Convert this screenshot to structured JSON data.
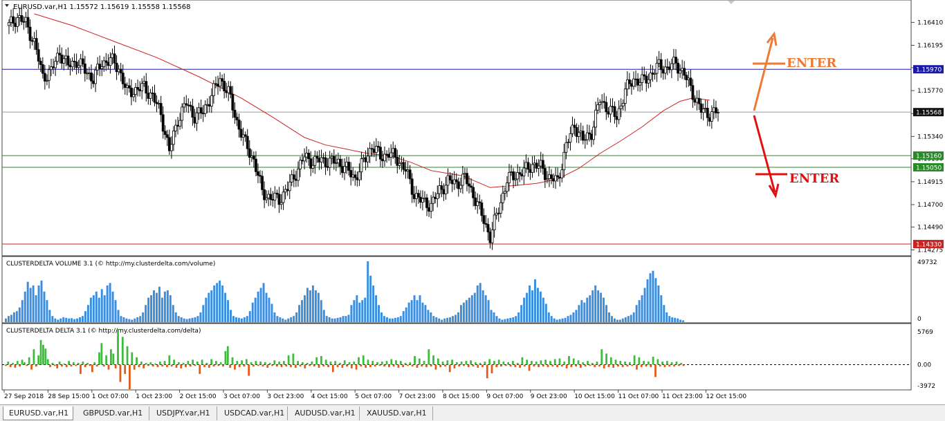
{
  "chart_data": [
    {
      "type": "candlestick",
      "title": "EURUSD.var,H1  1.15572 1.15619 1.15558 1.15568",
      "ohlc_last": {
        "open": 1.15572,
        "high": 1.15619,
        "low": 1.15558,
        "close": 1.15568
      },
      "ylim": [
        1.1422,
        1.1662
      ],
      "y_ticks": [
        1.1641,
        1.16195,
        1.15985,
        1.1577,
        1.15555,
        1.1534,
        1.1513,
        1.14915,
        1.147,
        1.1449,
        1.14275
      ],
      "y_tick_labels": [
        "1.16410",
        "1.16195",
        "1.15985",
        "1.15770",
        "1.15555",
        "1.15340",
        "1.15130",
        "1.14915",
        "1.14700",
        "1.14490",
        "1.14275"
      ],
      "close_path": [
        [
          0,
          1.1638
        ],
        [
          4,
          1.1646
        ],
        [
          8,
          1.164
        ],
        [
          12,
          1.1622
        ],
        [
          16,
          1.159
        ],
        [
          20,
          1.1595
        ],
        [
          24,
          1.1613
        ],
        [
          28,
          1.16
        ],
        [
          32,
          1.1605
        ],
        [
          36,
          1.1596
        ],
        [
          40,
          1.1588
        ],
        [
          44,
          1.1603
        ],
        [
          48,
          1.1606
        ],
        [
          52,
          1.1598
        ],
        [
          56,
          1.1575
        ],
        [
          60,
          1.1578
        ],
        [
          64,
          1.158
        ],
        [
          68,
          1.1572
        ],
        [
          72,
          1.1555
        ],
        [
          76,
          1.152
        ],
        [
          80,
          1.155
        ],
        [
          84,
          1.1565
        ],
        [
          88,
          1.1553
        ],
        [
          92,
          1.1557
        ],
        [
          96,
          1.1573
        ],
        [
          100,
          1.1588
        ],
        [
          104,
          1.1575
        ],
        [
          108,
          1.1548
        ],
        [
          112,
          1.1527
        ],
        [
          116,
          1.1512
        ],
        [
          120,
          1.1482
        ],
        [
          124,
          1.1476
        ],
        [
          128,
          1.1475
        ],
        [
          132,
          1.1485
        ],
        [
          136,
          1.15
        ],
        [
          140,
          1.1515
        ],
        [
          144,
          1.151
        ],
        [
          148,
          1.1512
        ],
        [
          152,
          1.151
        ],
        [
          156,
          1.151
        ],
        [
          160,
          1.1503
        ],
        [
          164,
          1.1495
        ],
        [
          168,
          1.151
        ],
        [
          172,
          1.1525
        ],
        [
          176,
          1.1515
        ],
        [
          180,
          1.1518
        ],
        [
          184,
          1.1513
        ],
        [
          188,
          1.1502
        ],
        [
          192,
          1.148
        ],
        [
          196,
          1.1472
        ],
        [
          200,
          1.147
        ],
        [
          204,
          1.1483
        ],
        [
          208,
          1.1492
        ],
        [
          212,
          1.149
        ],
        [
          216,
          1.1495
        ],
        [
          220,
          1.148
        ],
        [
          224,
          1.146
        ],
        [
          228,
          1.144
        ],
        [
          232,
          1.1466
        ],
        [
          236,
          1.1493
        ],
        [
          240,
          1.1498
        ],
        [
          244,
          1.1501
        ],
        [
          248,
          1.1508
        ],
        [
          252,
          1.1505
        ],
        [
          256,
          1.1495
        ],
        [
          260,
          1.1492
        ],
        [
          264,
          1.1525
        ],
        [
          268,
          1.1545
        ],
        [
          272,
          1.153
        ],
        [
          276,
          1.1538
        ],
        [
          280,
          1.1568
        ],
        [
          284,
          1.156
        ],
        [
          288,
          1.1552
        ],
        [
          292,
          1.1577
        ],
        [
          296,
          1.1588
        ],
        [
          300,
          1.1585
        ],
        [
          304,
          1.1592
        ],
        [
          308,
          1.16
        ],
        [
          312,
          1.1598
        ],
        [
          316,
          1.1603
        ],
        [
          320,
          1.1592
        ],
        [
          324,
          1.1575
        ],
        [
          328,
          1.1558
        ],
        [
          332,
          1.1555
        ],
        [
          336,
          1.1557
        ]
      ],
      "moving_average": {
        "color": "#cc2222",
        "points": [
          [
            12,
            1.1649
          ],
          [
            30,
            1.1638
          ],
          [
            50,
            1.1623
          ],
          [
            70,
            1.1608
          ],
          [
            90,
            1.159
          ],
          [
            110,
            1.157
          ],
          [
            125,
            1.1552
          ],
          [
            140,
            1.1533
          ],
          [
            150,
            1.1526
          ],
          [
            160,
            1.1522
          ],
          [
            170,
            1.1518
          ],
          [
            180,
            1.1516
          ],
          [
            190,
            1.151
          ],
          [
            200,
            1.1502
          ],
          [
            215,
            1.1497
          ],
          [
            228,
            1.1486
          ],
          [
            240,
            1.1488
          ],
          [
            250,
            1.149
          ],
          [
            260,
            1.1494
          ],
          [
            270,
            1.1504
          ],
          [
            280,
            1.1518
          ],
          [
            290,
            1.153
          ],
          [
            300,
            1.1543
          ],
          [
            310,
            1.1558
          ],
          [
            318,
            1.1567
          ],
          [
            324,
            1.157
          ],
          [
            332,
            1.1568
          ]
        ]
      },
      "horizontal_levels": [
        {
          "value": 1.1597,
          "label": "1.15970",
          "color": "#1a1aa6"
        },
        {
          "value": 1.15568,
          "label": "1.15568",
          "color": "#111111"
        },
        {
          "value": 1.1516,
          "label": "1.15160",
          "color": "#2a8a2a"
        },
        {
          "value": 1.1505,
          "label": "1.15050",
          "color": "#2a8a2a"
        },
        {
          "value": 1.1433,
          "label": "1.14330",
          "color": "#cc2222"
        }
      ],
      "annotations": [
        {
          "text": "ENTER",
          "color": "#f07830",
          "direction": "up"
        },
        {
          "text": "ENTER",
          "color": "#e01010",
          "direction": "down"
        }
      ],
      "x_labels": [
        "27 Sep 2018",
        "28 Sep 15:00",
        "1 Oct 07:00",
        "1 Oct 23:00",
        "2 Oct 15:00",
        "3 Oct 07:00",
        "3 Oct 23:00",
        "4 Oct 15:00",
        "5 Oct 07:00",
        "7 Oct 23:00",
        "8 Oct 15:00",
        "9 Oct 07:00",
        "9 Oct 23:00",
        "10 Oct 15:00",
        "11 Oct 07:00",
        "11 Oct 23:00",
        "12 Oct 15:00"
      ]
    },
    {
      "type": "bar",
      "title": "CLUSTERDELTA VOLUME 3.1 (© http://my.clusterdelta.com/volume)",
      "color": "#3a8ee0",
      "ylim": [
        0,
        49732
      ],
      "y_tick_labels": [
        "49732",
        "0"
      ],
      "values": [
        3000,
        5000,
        6000,
        8000,
        9000,
        12000,
        18000,
        25000,
        33000,
        28000,
        30000,
        22000,
        30000,
        34000,
        25000,
        18000,
        10000,
        5000,
        3000,
        2000,
        3000,
        4000,
        3500,
        3000,
        3200,
        2500,
        3000,
        4000,
        5000,
        9000,
        14000,
        20000,
        22000,
        25000,
        20000,
        27000,
        22000,
        30000,
        32000,
        25000,
        18000,
        10000,
        5000,
        4000,
        3000,
        2500,
        2000,
        3000,
        4000,
        5000,
        8000,
        14000,
        20000,
        22000,
        26000,
        24000,
        29000,
        20000,
        25000,
        26000,
        22000,
        14000,
        8000,
        5000,
        4000,
        3000,
        2500,
        3000,
        3500,
        4000,
        5000,
        8000,
        14000,
        20000,
        24000,
        26000,
        30000,
        32000,
        34000,
        30000,
        24000,
        18000,
        10000,
        5000,
        4000,
        3500,
        3000,
        4000,
        5000,
        9000,
        16000,
        20000,
        25000,
        28000,
        32000,
        24000,
        20000,
        15000,
        8000,
        5000,
        4000,
        3000,
        2000,
        3000,
        4000,
        5000,
        8000,
        14000,
        18000,
        22000,
        28000,
        26000,
        30000,
        26000,
        24000,
        18000,
        10000,
        5000,
        4000,
        3000,
        3000,
        3500,
        4000,
        5000,
        5000,
        6000,
        14000,
        18000,
        22000,
        16000,
        18000,
        20000,
        49732,
        38000,
        30000,
        22000,
        14000,
        8000,
        5000,
        4000,
        3000,
        3000,
        3500,
        4000,
        5000,
        9000,
        12000,
        16000,
        18000,
        22000,
        18000,
        22000,
        16000,
        14000,
        10000,
        8000,
        5000,
        4000,
        3000,
        2000,
        3000,
        3500,
        4000,
        5000,
        6000,
        8000,
        14000,
        16000,
        18000,
        20000,
        22000,
        24000,
        30000,
        32000,
        26000,
        22000,
        18000,
        10000,
        8000,
        5000,
        3000,
        2000,
        2500,
        3000,
        3500,
        4000,
        5000,
        8000,
        14000,
        20000,
        24000,
        30000,
        26000,
        35000,
        28000,
        25000,
        20000,
        15000,
        8000,
        5000,
        3000,
        2000,
        2500,
        3000,
        3500,
        5000,
        6000,
        8000,
        10000,
        14000,
        18000,
        16000,
        20000,
        22000,
        26000,
        30000,
        26000,
        24000,
        20000,
        14000,
        8000,
        5000,
        3000,
        2000,
        2000,
        3000,
        4000,
        5000,
        6000,
        8000,
        14000,
        18000,
        22000,
        28000,
        35000,
        40000,
        42000,
        36000,
        30000,
        22000,
        14000,
        8000,
        5000,
        4000,
        3500,
        3000,
        2000,
        1500
      ]
    },
    {
      "type": "bar",
      "title": "CLUSTERDELTA DELTA 3.1 (© http://my.clusterdelta.com/delta)",
      "y_tick_labels": [
        "5769",
        "0.00",
        "-3972"
      ],
      "ylim": [
        -3972,
        5769
      ],
      "positive_color": "#3dbb3d",
      "negative_color": "#e25a17",
      "values": [
        -200,
        500,
        -400,
        300,
        -500,
        600,
        -300,
        800,
        400,
        -200,
        1200,
        -800,
        2500,
        -300,
        1500,
        4000,
        3200,
        2600,
        900,
        -400,
        300,
        -200,
        -600,
        500,
        -300,
        200,
        -400,
        600,
        -300,
        400,
        -200,
        300,
        -1500,
        500,
        -400,
        300,
        -200,
        -1200,
        400,
        -300,
        2000,
        3500,
        -300,
        1500,
        -800,
        2500,
        1800,
        -600,
        5769,
        -2800,
        4500,
        -1500,
        3000,
        -3972,
        2000,
        -800,
        1200,
        -400,
        500,
        -600,
        300,
        -200,
        400,
        -300,
        200,
        -400,
        500,
        -300,
        600,
        -400,
        1500,
        -300,
        800,
        -500,
        400,
        -600,
        300,
        -400,
        600,
        -300,
        800,
        -200,
        500,
        -1500,
        800,
        -400,
        300,
        -500,
        900,
        -300,
        600,
        -200,
        400,
        -300,
        2200,
        3000,
        -500,
        1200,
        -800,
        600,
        -400,
        700,
        -300,
        900,
        -1800,
        400,
        -300,
        600,
        -200,
        500,
        -300,
        400,
        -500,
        300,
        -200,
        700,
        -300,
        500,
        -400,
        600,
        -300,
        1500,
        -400,
        1800,
        -500,
        600,
        -300,
        400,
        -600,
        300,
        -200,
        500,
        -300,
        1200,
        -500,
        1400,
        -300,
        800,
        -400,
        500,
        -1200,
        600,
        -400,
        300,
        -500,
        700,
        -300,
        400,
        -600,
        500,
        -800,
        1200,
        -300,
        1500,
        -500,
        800,
        -400,
        600,
        -300,
        400,
        -200,
        500,
        -300,
        600,
        -400,
        900,
        -300,
        700,
        -500,
        600,
        -400,
        300,
        -200,
        400,
        -300,
        1400,
        -500,
        1000,
        -300,
        600,
        -400,
        2500,
        -300,
        1500,
        -800,
        1000,
        -400,
        500,
        -300,
        700,
        -1200,
        800,
        -600,
        400,
        -300,
        500,
        -200,
        600,
        -400,
        700,
        -300,
        400,
        -500,
        300,
        -400,
        500,
        -2200,
        900,
        -1400,
        600,
        -400,
        800,
        -300,
        500,
        -200,
        400,
        -300,
        600,
        -400,
        300,
        -500,
        1200,
        -300,
        800,
        -1000,
        600,
        -300,
        500,
        -400,
        700,
        -300,
        800,
        -400,
        600,
        -300,
        900,
        -400,
        1000,
        -300,
        500,
        -600,
        1400,
        -400,
        1000,
        -300,
        700,
        -500,
        400,
        -300,
        600,
        -200,
        300,
        -400,
        500,
        -300,
        2500,
        -600,
        1800,
        -400,
        1200,
        -500,
        800,
        -300,
        600,
        -400,
        500,
        -300,
        400,
        -200,
        1500,
        -800,
        1200,
        -400,
        600,
        -300,
        500,
        -400,
        1300,
        -2000,
        900,
        -300,
        500,
        -400,
        600,
        -300,
        400,
        -300,
        500,
        -200,
        300,
        -200
      ]
    }
  ],
  "tabs": [
    "EURUSD.var,H1",
    "GBPUSD.var,H1",
    "USDJPY.var,H1",
    "USDCAD.var,H1",
    "AUDUSD.var,H1",
    "XAUUSD.var,H1"
  ],
  "active_tab": "EURUSD.var,H1"
}
